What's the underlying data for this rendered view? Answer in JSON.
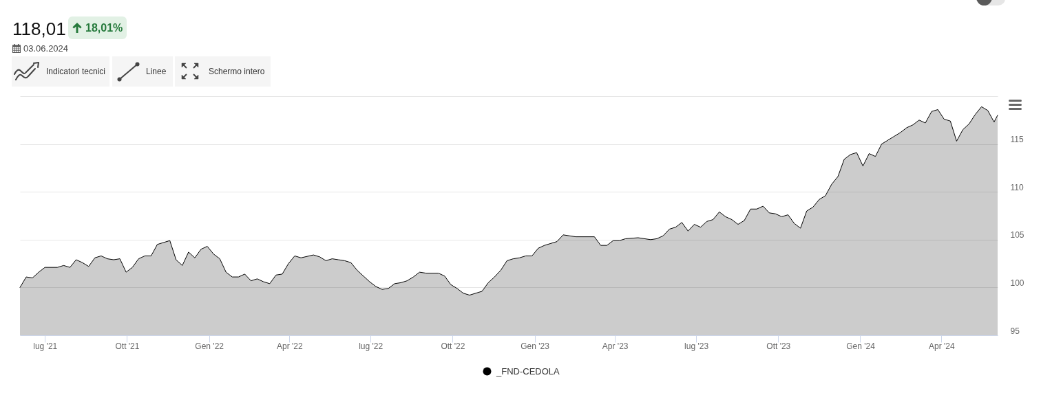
{
  "chart_data": {
    "type": "area",
    "title": "118,01",
    "subtitle": "18,01%",
    "annotations": [
      "03.06.2024",
      "Indicatori tecnici",
      "Linee",
      "Schermo intero"
    ],
    "x": [
      "2021-06-03",
      "2021-06-10",
      "2021-06-17",
      "2021-06-24",
      "2021-07-01",
      "2021-07-15",
      "2021-07-22",
      "2021-07-29",
      "2021-08-05",
      "2021-08-12",
      "2021-08-19",
      "2021-08-26",
      "2021-09-02",
      "2021-09-09",
      "2021-09-16",
      "2021-09-23",
      "2021-09-30",
      "2021-10-07",
      "2021-10-14",
      "2021-10-21",
      "2021-10-28",
      "2021-11-04",
      "2021-11-18",
      "2021-11-25",
      "2021-12-02",
      "2021-12-09",
      "2021-12-16",
      "2021-12-23",
      "2021-12-30",
      "2022-01-06",
      "2022-01-13",
      "2022-01-20",
      "2022-01-27",
      "2022-02-03",
      "2022-02-10",
      "2022-02-17",
      "2022-02-24",
      "2022-03-03",
      "2022-03-10",
      "2022-03-17",
      "2022-03-24",
      "2022-03-31",
      "2022-04-07",
      "2022-04-14",
      "2022-04-28",
      "2022-05-05",
      "2022-05-12",
      "2022-05-19",
      "2022-05-26",
      "2022-06-02",
      "2022-06-09",
      "2022-06-16",
      "2022-06-23",
      "2022-06-30",
      "2022-07-07",
      "2022-07-14",
      "2022-07-21",
      "2022-07-28",
      "2022-08-04",
      "2022-08-11",
      "2022-08-18",
      "2022-08-25",
      "2022-09-01",
      "2022-09-15",
      "2022-09-22",
      "2022-09-29",
      "2022-10-06",
      "2022-10-13",
      "2022-10-20",
      "2022-10-27",
      "2022-11-03",
      "2022-11-10",
      "2022-11-17",
      "2022-11-24",
      "2022-12-01",
      "2022-12-08",
      "2022-12-15",
      "2022-12-22",
      "2022-12-29",
      "2023-01-05",
      "2023-01-12",
      "2023-01-19",
      "2023-01-26",
      "2023-02-02",
      "2023-02-09",
      "2023-02-16",
      "2023-03-09",
      "2023-03-16",
      "2023-03-23",
      "2023-03-30",
      "2023-04-06",
      "2023-04-13",
      "2023-04-27",
      "2023-05-11",
      "2023-05-18",
      "2023-05-25",
      "2023-06-01",
      "2023-06-08",
      "2023-06-15",
      "2023-06-22",
      "2023-06-29",
      "2023-07-06",
      "2023-07-13",
      "2023-07-20",
      "2023-07-27",
      "2023-08-03",
      "2023-08-10",
      "2023-08-17",
      "2023-08-24",
      "2023-08-31",
      "2023-09-07",
      "2023-09-14",
      "2023-09-21",
      "2023-09-28",
      "2023-10-05",
      "2023-10-12",
      "2023-10-19",
      "2023-10-26",
      "2023-11-02",
      "2023-11-09",
      "2023-11-16",
      "2023-11-23",
      "2023-11-30",
      "2023-12-07",
      "2023-12-14",
      "2023-12-21",
      "2023-12-28",
      "2024-01-04",
      "2024-01-11",
      "2024-01-18",
      "2024-01-25",
      "2024-02-01",
      "2024-02-08",
      "2024-02-15",
      "2024-02-22",
      "2024-02-29",
      "2024-03-07",
      "2024-03-14",
      "2024-03-21",
      "2024-03-28",
      "2024-04-04",
      "2024-04-11",
      "2024-04-18",
      "2024-04-25",
      "2024-05-02",
      "2024-05-09",
      "2024-05-16",
      "2024-05-23",
      "2024-05-30",
      "2024-06-03"
    ],
    "series": [
      {
        "name": "_FND-CEDOLA",
        "color": "#000000",
        "values": [
          100.0,
          101.1,
          101.0,
          101.6,
          102.1,
          102.1,
          102.3,
          102.1,
          102.9,
          102.6,
          102.2,
          103.1,
          103.3,
          103.0,
          102.9,
          103.0,
          101.6,
          102.1,
          103.0,
          103.3,
          103.3,
          104.5,
          104.9,
          102.9,
          102.3,
          103.7,
          103.1,
          104.0,
          104.3,
          103.5,
          103.0,
          101.6,
          101.1,
          101.1,
          101.4,
          100.7,
          100.9,
          100.6,
          100.4,
          101.3,
          101.4,
          102.5,
          103.3,
          103.1,
          103.4,
          103.2,
          102.8,
          103.0,
          102.9,
          102.8,
          102.6,
          101.8,
          101.2,
          100.6,
          100.1,
          99.8,
          99.9,
          100.4,
          100.5,
          100.7,
          101.1,
          101.6,
          101.5,
          101.5,
          101.2,
          100.3,
          99.9,
          99.4,
          99.2,
          99.4,
          99.6,
          100.5,
          101.1,
          101.8,
          102.8,
          103.0,
          103.1,
          103.3,
          103.3,
          104.1,
          104.4,
          104.6,
          104.8,
          105.5,
          105.4,
          105.3,
          105.3,
          104.4,
          104.4,
          104.9,
          104.9,
          105.1,
          105.2,
          105.0,
          105.1,
          105.4,
          106.1,
          106.3,
          106.8,
          105.9,
          106.6,
          106.3,
          106.9,
          107.1,
          107.9,
          107.4,
          107.1,
          106.6,
          107.0,
          108.2,
          108.2,
          108.5,
          107.8,
          107.7,
          107.4,
          107.6,
          106.7,
          106.2,
          108.0,
          108.4,
          109.2,
          109.6,
          110.8,
          111.6,
          113.4,
          113.9,
          114.1,
          112.7,
          114.0,
          113.7,
          115.0,
          115.4,
          115.8,
          116.2,
          116.7,
          117.0,
          117.5,
          117.2,
          118.4,
          118.6,
          117.6,
          117.4,
          115.3,
          116.5,
          117.1,
          118.1,
          118.9,
          118.5,
          117.3,
          118.01
        ]
      }
    ],
    "xlim": [
      "2021-06-03",
      "2024-06-03"
    ],
    "xticks": [
      {
        "value": "2021-07-01",
        "label": "lug '21"
      },
      {
        "value": "2021-10-01",
        "label": "Ott '21"
      },
      {
        "value": "2022-01-01",
        "label": "Gen '22"
      },
      {
        "value": "2022-04-01",
        "label": "Apr '22"
      },
      {
        "value": "2022-07-01",
        "label": "lug '22"
      },
      {
        "value": "2022-10-01",
        "label": "Ott '22"
      },
      {
        "value": "2023-01-01",
        "label": "Gen '23"
      },
      {
        "value": "2023-04-01",
        "label": "Apr '23"
      },
      {
        "value": "2023-07-01",
        "label": "lug '23"
      },
      {
        "value": "2023-10-01",
        "label": "Ott '23"
      },
      {
        "value": "2024-01-01",
        "label": "Gen '24"
      },
      {
        "value": "2024-04-01",
        "label": "Apr '24"
      }
    ],
    "ylim": [
      95,
      120
    ],
    "yticks": [
      95,
      100,
      105,
      110,
      115,
      {
        "value": 120,
        "label": null
      }
    ],
    "grid": "y",
    "legend": "bottom",
    "line_style": "solid"
  }
}
